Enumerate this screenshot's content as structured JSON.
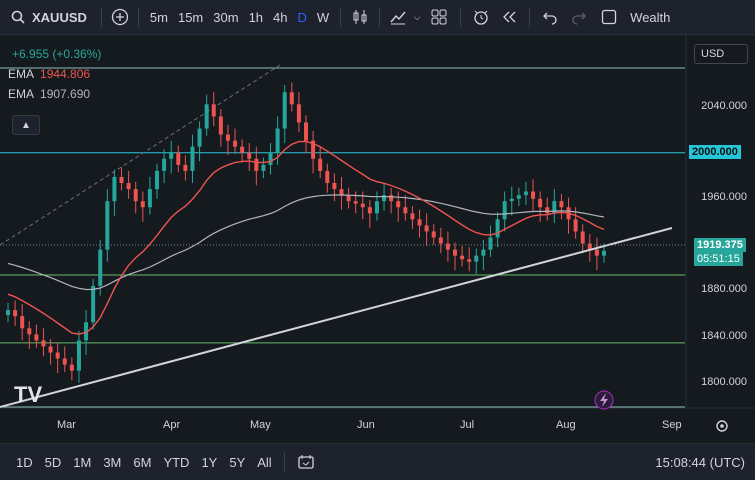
{
  "toolbar": {
    "symbol": "XAUUSD",
    "intervals": [
      "5m",
      "15m",
      "30m",
      "1h",
      "4h",
      "D",
      "W"
    ],
    "active_interval": "D",
    "truncated_label": "Wealth"
  },
  "legend": {
    "change": "+6.955 (+0.36%)",
    "ema1_label": "EMA",
    "ema1_value": "1944.806",
    "ema2_label": "EMA",
    "ema2_value": "1907.690"
  },
  "currency": "USD",
  "price_axis": [
    "2040.000",
    "2000.000",
    "1960.000",
    "1920.000",
    "1880.000",
    "1840.000",
    "1800.000"
  ],
  "price_tags": {
    "level": "2000.000",
    "last_price": "1919.375",
    "countdown": "05:51:15"
  },
  "time_axis": [
    "Mar",
    "Apr",
    "May",
    "Jun",
    "Jul",
    "Aug",
    "Sep"
  ],
  "ranges": [
    "1D",
    "5D",
    "1M",
    "3M",
    "6M",
    "YTD",
    "1Y",
    "5Y",
    "All"
  ],
  "clock": "15:08:44 (UTC)",
  "logo": "TV",
  "colors": {
    "up": "#26a69a",
    "down": "#ef5350",
    "ema_fast": "#ef5350",
    "ema_slow": "#b2b5be",
    "hline": "#26c6da",
    "accent": "#2962ff"
  },
  "chart_data": {
    "type": "candlestick",
    "ylim": [
      1790,
      2070
    ],
    "horizontal_levels": [
      2070,
      2000,
      1899,
      1843,
      1790
    ],
    "ohlc_close_series": [
      1870,
      1865,
      1855,
      1850,
      1845,
      1840,
      1835,
      1830,
      1825,
      1820,
      1845,
      1860,
      1890,
      1920,
      1960,
      1980,
      1975,
      1970,
      1960,
      1955,
      1970,
      1985,
      1995,
      2000,
      1990,
      1985,
      2005,
      2020,
      2040,
      2030,
      2015,
      2010,
      2005,
      2000,
      1995,
      1985,
      1990,
      2000,
      2020,
      2050,
      2040,
      2025,
      2010,
      1995,
      1985,
      1975,
      1970,
      1965,
      1960,
      1958,
      1955,
      1950,
      1960,
      1965,
      1960,
      1955,
      1950,
      1945,
      1940,
      1935,
      1930,
      1925,
      1920,
      1915,
      1912,
      1910,
      1915,
      1920,
      1930,
      1945,
      1960,
      1962,
      1965,
      1968,
      1962,
      1955,
      1950,
      1960,
      1955,
      1945,
      1935,
      1925,
      1920,
      1915,
      1919
    ]
  }
}
